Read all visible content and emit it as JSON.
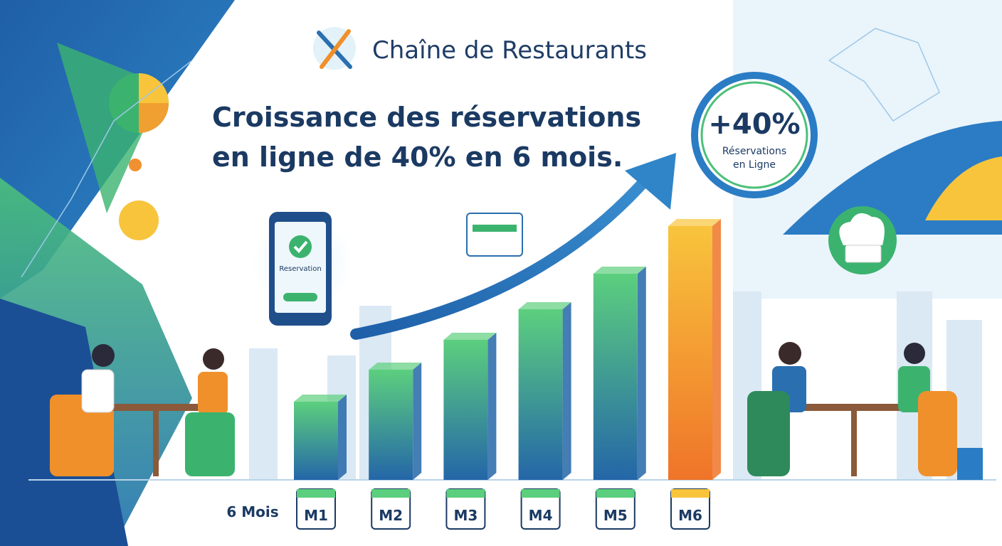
{
  "header": {
    "title": "Chaîne de Restaurants"
  },
  "headline": {
    "lines": [
      "Croissance des réservations",
      "en ligne de 40% en 6 mois."
    ]
  },
  "badge": {
    "value": "+40%",
    "lines": [
      "Réservations",
      "en Ligne"
    ]
  },
  "phone": {
    "label": "Reservation"
  },
  "chart_data": {
    "type": "bar",
    "x_label": "6 Mois",
    "categories": [
      "M1",
      "M2",
      "M3",
      "M4",
      "M5",
      "M6"
    ],
    "values": [
      110,
      155,
      197,
      240,
      290,
      357
    ],
    "colors": [
      [
        "#5ccf7e",
        "#2466a8"
      ],
      [
        "#5ccf7e",
        "#2466a8"
      ],
      [
        "#5ccf7e",
        "#2466a8"
      ],
      [
        "#5ccf7e",
        "#2466a8"
      ],
      [
        "#5ccf7e",
        "#2466a8"
      ],
      [
        "#f8c43c",
        "#ef7429"
      ]
    ],
    "ylim": [
      0,
      360
    ]
  }
}
